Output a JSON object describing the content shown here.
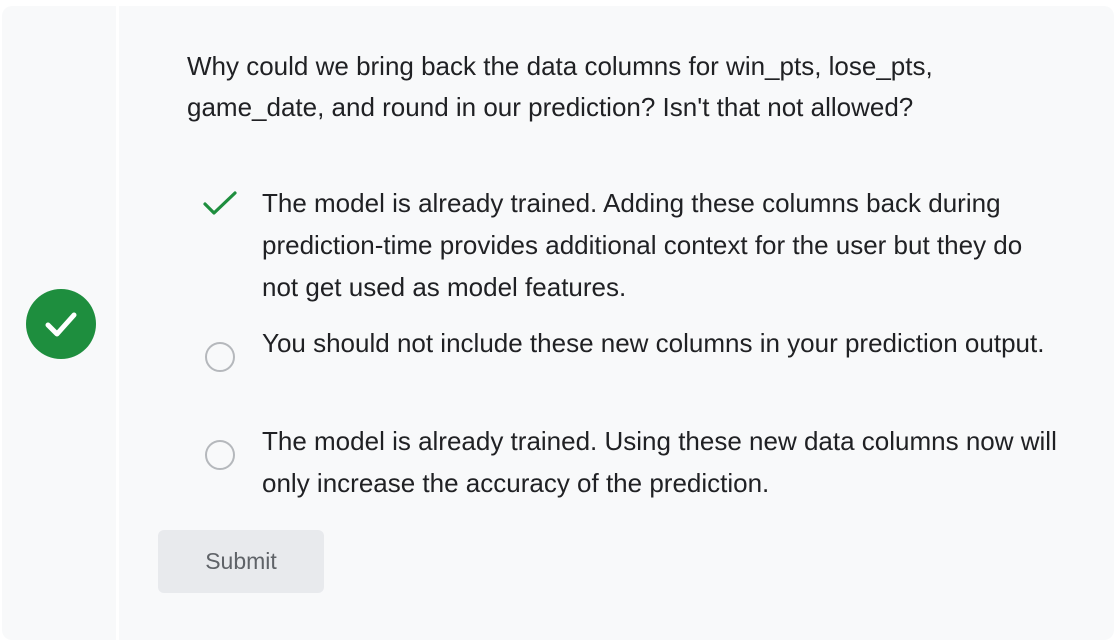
{
  "question": "Why could we bring back the data columns for win_pts, lose_pts, game_date, and round in our prediction? Isn't that not allowed?",
  "status": {
    "icon": "check-icon",
    "color": "#1e8e3e",
    "state": "correct"
  },
  "options": [
    {
      "label": "The model is already trained. Adding these columns back during prediction-time provides additional context for the user but they do not get used as model features.",
      "marker": "check-icon",
      "selected": true
    },
    {
      "label": "You should not include these new columns in your prediction output.",
      "marker": "radio-icon",
      "selected": false
    },
    {
      "label": "The model is already trained. Using these new data columns now will only increase the accuracy of the prediction.",
      "marker": "radio-icon",
      "selected": false
    }
  ],
  "submit_label": "Submit",
  "colors": {
    "accent": "#1e8e3e",
    "card_bg": "#f8f9fa",
    "button_bg": "#e8eaed",
    "button_text": "#5f6368"
  }
}
